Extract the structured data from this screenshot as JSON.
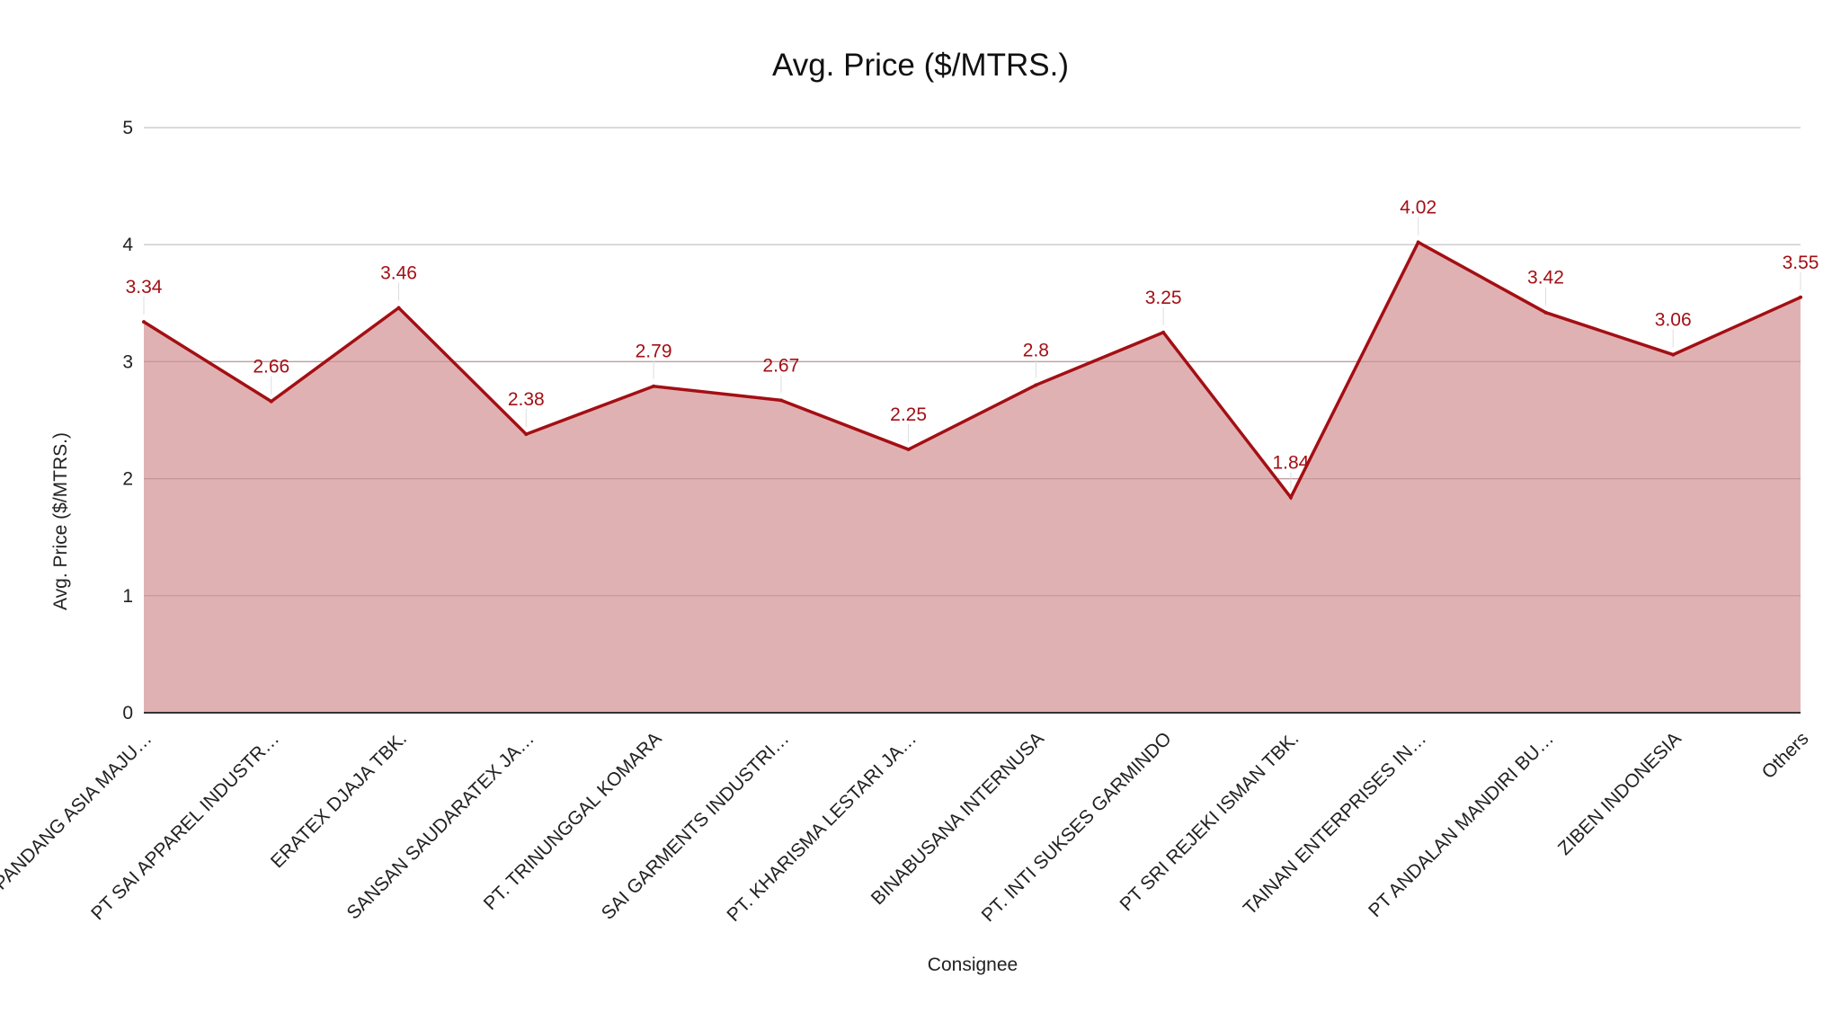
{
  "chart_data": {
    "type": "area",
    "title": "Avg. Price ($/MTRS.)",
    "xlabel": "Consignee",
    "ylabel": "Avg. Price ($/MTRS.)",
    "ylim": [
      0,
      5
    ],
    "yticks": [
      "0",
      "1",
      "2",
      "3",
      "4",
      "5"
    ],
    "grid": true,
    "legend": "none",
    "categories": [
      "PT PANDANG ASIA MAJU…",
      "PT SAI APPAREL INDUSTR…",
      "ERATEX DJAJA TBK.",
      "SANSAN SAUDARATEX JA…",
      "PT. TRINUNGGAL KOMARA",
      "SAI GARMENTS INDUSTRI…",
      "PT. KHARISMA LESTARI JA…",
      "BINABUSANA INTERNUSA",
      "PT. INTI SUKSES GARMINDO",
      "PT SRI REJEKI ISMAN TBK.",
      "TAINAN ENTERPRISES IN…",
      "PT ANDALAN MANDIRI BU…",
      "ZIBEN INDONESIA",
      "Others"
    ],
    "values": [
      3.34,
      2.66,
      3.46,
      2.38,
      2.79,
      2.67,
      2.25,
      2.8,
      3.25,
      1.84,
      4.02,
      3.42,
      3.06,
      3.55
    ],
    "data_labels": [
      "3.34",
      "2.66",
      "3.46",
      "2.38",
      "2.79",
      "2.67",
      "2.25",
      "2.8",
      "3.25",
      "1.84",
      "4.02",
      "3.42",
      "3.06",
      "3.55"
    ],
    "colors": {
      "line": "#a30f14",
      "fill": "#e0b1b2",
      "label": "#a30f14",
      "grid": "#cfcfcf",
      "axis": "#333333"
    }
  }
}
